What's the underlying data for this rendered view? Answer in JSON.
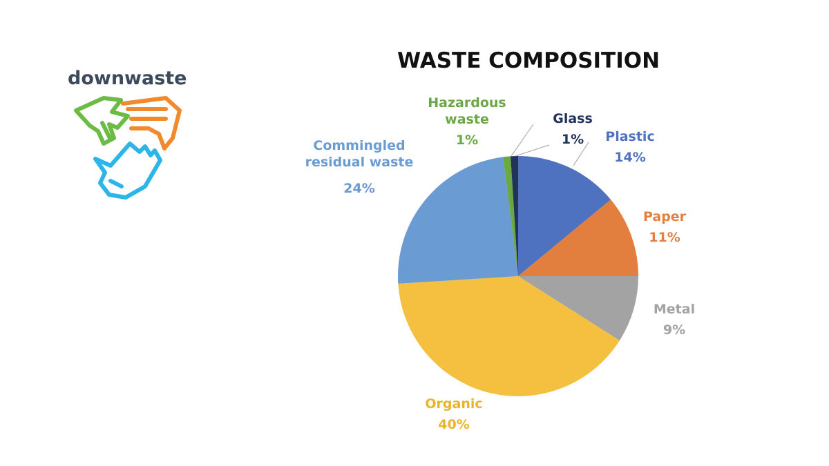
{
  "logo": {
    "text": "downwaste",
    "colors": {
      "text": "#3d4a5c",
      "green": "#6cbb45",
      "orange": "#f08a2c",
      "blue": "#2bb5e8"
    }
  },
  "chart_data": {
    "type": "pie",
    "title": "WASTE COMPOSITION",
    "slices": [
      {
        "label": "Plastic",
        "value": 14,
        "pct": "14%",
        "color": "#4e72c0",
        "label_color": "#4e72c0"
      },
      {
        "label": "Paper",
        "value": 11,
        "pct": "11%",
        "color": "#e27f3e",
        "label_color": "#e27f3e"
      },
      {
        "label": "Metal",
        "value": 9,
        "pct": "9%",
        "color": "#a3a3a3",
        "label_color": "#a3a3a3"
      },
      {
        "label": "Organic",
        "value": 40,
        "pct": "40%",
        "color": "#f5c040",
        "label_color": "#eab32c"
      },
      {
        "label": "Commingled residual waste",
        "label_lines": [
          "Commingled",
          "residual waste"
        ],
        "value": 24,
        "pct": "24%",
        "color": "#6a9bd3",
        "label_color": "#6a9bd3"
      },
      {
        "label": "Hazardous waste",
        "label_lines": [
          "Hazardous",
          "waste"
        ],
        "value": 1,
        "pct": "1%",
        "color": "#6aa844",
        "label_color": "#6aa844"
      },
      {
        "label": "Glass",
        "value": 1,
        "pct": "1%",
        "color": "#22335a",
        "label_color": "#22335a"
      }
    ]
  }
}
